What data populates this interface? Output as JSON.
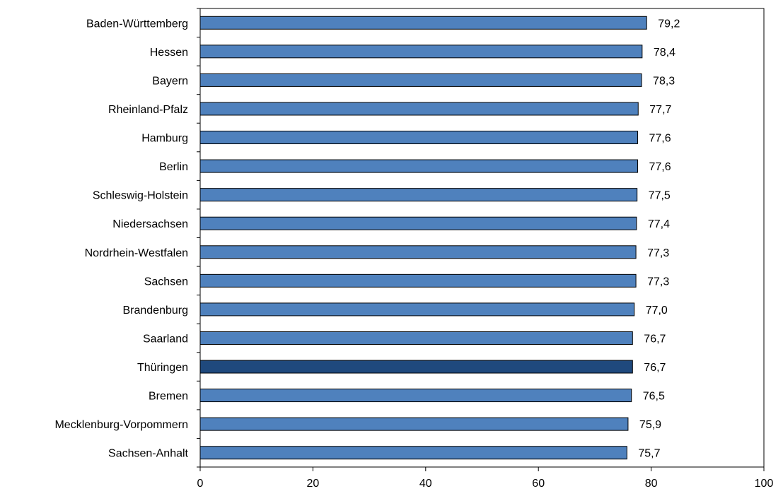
{
  "chart_data": {
    "type": "bar",
    "orientation": "horizontal",
    "title": "",
    "xlabel": "",
    "ylabel": "",
    "xlim": [
      0,
      100
    ],
    "x_ticks": [
      "0",
      "20",
      "40",
      "60",
      "80",
      "100"
    ],
    "grid": false,
    "legend": "none",
    "categories": [
      "Baden-Württemberg",
      "Hessen",
      "Bayern",
      "Rheinland-Pfalz",
      "Hamburg",
      "Berlin",
      "Schleswig-Holstein",
      "Niedersachsen",
      "Nordrhein-Westfalen",
      "Sachsen",
      "Brandenburg",
      "Saarland",
      "Thüringen",
      "Bremen",
      "Mecklenburg-Vorpommern",
      "Sachsen-Anhalt"
    ],
    "values": [
      79.2,
      78.4,
      78.3,
      77.7,
      77.6,
      77.6,
      77.5,
      77.4,
      77.3,
      77.3,
      77.0,
      76.7,
      76.7,
      76.5,
      75.9,
      75.7
    ],
    "value_labels": [
      "79,2",
      "78,4",
      "78,3",
      "77,7",
      "77,6",
      "77,6",
      "77,5",
      "77,4",
      "77,3",
      "77,3",
      "77,0",
      "76,7",
      "76,7",
      "76,5",
      "75,9",
      "75,7"
    ],
    "highlight_category": "Thüringen",
    "colors": {
      "bar": "#4f81bd",
      "bar_highlight": "#1f497d",
      "bar_stroke": "#000000",
      "axis": "#000000"
    }
  }
}
